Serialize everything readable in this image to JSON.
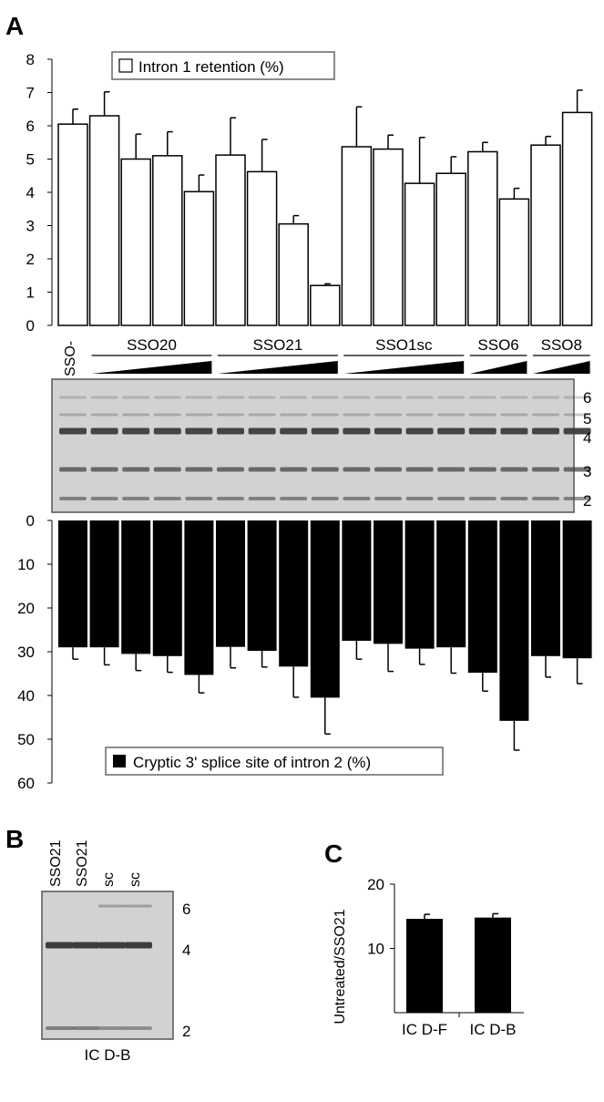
{
  "panels": {
    "a": "A",
    "b": "B",
    "c": "C"
  },
  "colors": {
    "open_bar": "#ffffff",
    "filled_bar": "#000000",
    "gel_bg": "#d2d2d2",
    "gel_band": "#3c3c3c"
  },
  "chart_data": [
    {
      "type": "bar",
      "panel": "A",
      "legend": "Intron 1 retention (%)",
      "legend_position": "top",
      "ylim": [
        0,
        8
      ],
      "yticks": [
        0,
        1,
        2,
        3,
        4,
        5,
        6,
        7,
        8
      ],
      "values": [
        6.05,
        6.3,
        5.0,
        5.1,
        4.02,
        5.12,
        4.62,
        3.05,
        1.2,
        5.37,
        5.3,
        4.27,
        4.57,
        5.22,
        3.8,
        5.42,
        6.4
      ],
      "errors": [
        0.45,
        0.72,
        0.75,
        0.72,
        0.5,
        1.12,
        0.97,
        0.25,
        0.05,
        1.2,
        0.42,
        1.38,
        0.5,
        0.28,
        0.32,
        0.26,
        0.67
      ]
    },
    {
      "type": "bar",
      "panel": "A",
      "legend": "Cryptic 3' splice site of intron 2 (%)",
      "legend_position": "bottom",
      "inverted": true,
      "ylim": [
        0,
        60
      ],
      "yticks": [
        0,
        10,
        20,
        30,
        40,
        50,
        60
      ],
      "values": [
        29.0,
        29.0,
        30.5,
        31.0,
        35.3,
        28.9,
        29.8,
        33.4,
        40.5,
        27.5,
        28.2,
        29.3,
        29.0,
        34.8,
        45.8,
        31.0,
        31.5
      ],
      "errors": [
        2.7,
        4.0,
        3.8,
        3.7,
        4.1,
        4.8,
        3.7,
        7.0,
        8.3,
        4.2,
        6.3,
        3.6,
        5.9,
        4.2,
        6.7,
        4.8,
        5.8
      ]
    },
    {
      "type": "bar",
      "panel": "C",
      "ylabel": "Untreated/SSO21",
      "categories": [
        "IC D-F",
        "IC D-B"
      ],
      "values": [
        14.6,
        14.8
      ],
      "errors": [
        0.7,
        0.6
      ],
      "ylim": [
        0,
        20
      ],
      "yticks": [
        10,
        20
      ]
    }
  ],
  "gel_a": {
    "lane_label_first": "SSO-",
    "groups": [
      {
        "label": "SSO20",
        "lanes": 4
      },
      {
        "label": "SSO21",
        "lanes": 4
      },
      {
        "label": "SSO1sc",
        "lanes": 4
      },
      {
        "label": "SSO6",
        "lanes": 2
      },
      {
        "label": "SSO8",
        "lanes": 2
      }
    ],
    "band_labels": [
      "6",
      "5",
      "4",
      "3",
      "2"
    ]
  },
  "gel_b": {
    "lane_labels": [
      "SSO21",
      "SSO21",
      "sc",
      "sc"
    ],
    "band_labels": [
      "6",
      "4",
      "2"
    ],
    "caption": "IC D-B"
  }
}
